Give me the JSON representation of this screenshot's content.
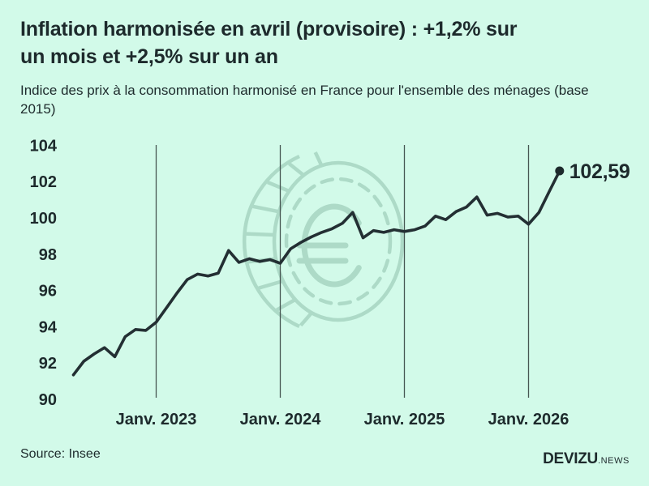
{
  "page": {
    "background_color": "#d2fae9",
    "ink_color": "#1d2a2c",
    "watermark_icon": "euro-coin-icon",
    "watermark_color": "#a9d7c4"
  },
  "header": {
    "title_line1": "Inflation harmonisée en avril (provisoire) : +1,2% sur",
    "title_line2": "un mois et +2,5% sur un an",
    "subtitle_line1": "Indice des prix à la consommation harmonisé en France pour l'ensemble des ménages (base",
    "subtitle_line2": "2015)"
  },
  "footer": {
    "source": "Source: Insee",
    "brand_bold": "DEVIZU",
    "brand_light": ".NEWS"
  },
  "chart_data": {
    "type": "line",
    "title": "Inflation harmonisée en avril (provisoire) : +1,2% sur un mois et +2,5% sur un an",
    "subtitle": "Indice des prix à la consommation harmonisé en France pour l'ensemble des ménages (base 2015)",
    "xlabel": "",
    "ylabel": "",
    "ylim": [
      90,
      104
    ],
    "grid": "vertical-only",
    "legend": "none",
    "line_color": "#232f33",
    "gridline_color": "#475753",
    "x": [
      "2022-05",
      "2022-06",
      "2022-07",
      "2022-08",
      "2022-09",
      "2022-10",
      "2022-11",
      "2022-12",
      "2023-01",
      "2023-02",
      "2023-03",
      "2023-04",
      "2023-05",
      "2023-06",
      "2023-07",
      "2023-08",
      "2023-09",
      "2023-10",
      "2023-11",
      "2023-12",
      "2024-01",
      "2024-02",
      "2024-03",
      "2024-04",
      "2024-05",
      "2024-06",
      "2024-07",
      "2024-08",
      "2024-09",
      "2024-10",
      "2024-11",
      "2024-12",
      "2025-01",
      "2025-02",
      "2025-03",
      "2025-04",
      "2025-05",
      "2025-06",
      "2025-07",
      "2025-08",
      "2025-09",
      "2025-10",
      "2025-11",
      "2025-12",
      "2026-01",
      "2026-02",
      "2026-03",
      "2026-04"
    ],
    "values": [
      91.35,
      92.1,
      92.5,
      92.85,
      92.35,
      93.45,
      93.85,
      93.8,
      94.25,
      95.05,
      95.85,
      96.6,
      96.9,
      96.8,
      96.95,
      98.2,
      97.55,
      97.75,
      97.6,
      97.7,
      97.5,
      98.3,
      98.65,
      98.95,
      99.2,
      99.4,
      99.7,
      100.3,
      98.9,
      99.3,
      99.2,
      99.35,
      99.25,
      99.35,
      99.55,
      100.1,
      99.9,
      100.35,
      100.6,
      101.15,
      100.15,
      100.25,
      100.05,
      100.1,
      99.65,
      100.3,
      101.45,
      102.59
    ],
    "y_ticks": [
      90,
      92,
      94,
      96,
      98,
      100,
      102,
      104
    ],
    "x_ticks": [
      {
        "index": 8,
        "label": "Janv. 2023"
      },
      {
        "index": 20,
        "label": "Janv. 2024"
      },
      {
        "index": 32,
        "label": "Janv. 2025"
      },
      {
        "index": 44,
        "label": "Janv. 2026"
      }
    ],
    "end_value": 102.59,
    "end_label": "102,59"
  }
}
